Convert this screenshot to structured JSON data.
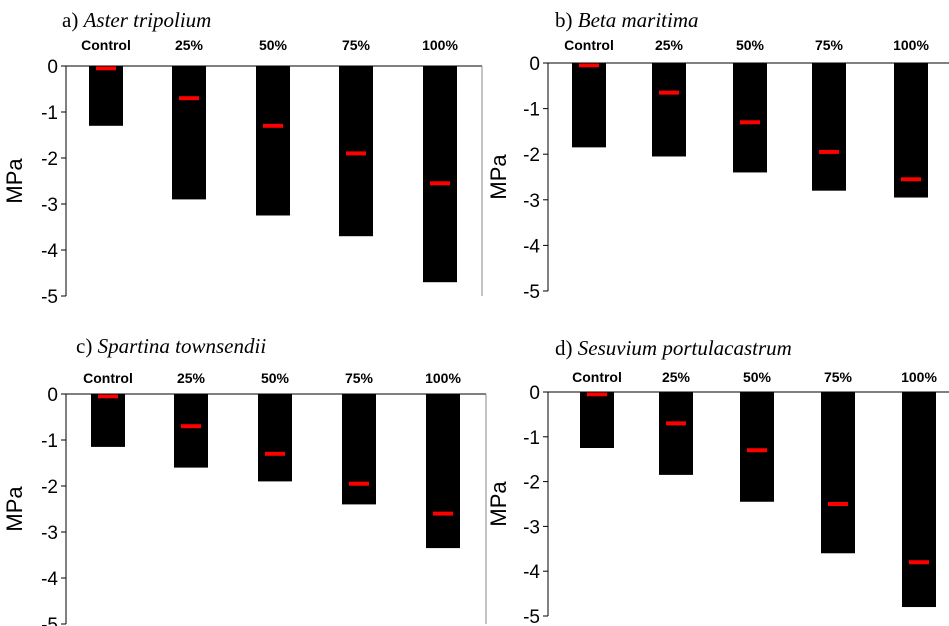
{
  "colors": {
    "bar": "#000000",
    "marker": "#ff0000",
    "axis": "#000000",
    "background": "#ffffff"
  },
  "chart_data": [
    {
      "type": "bar",
      "panel_label": "a)",
      "title": "Aster tripolium",
      "categories": [
        "Control",
        "25%",
        "50%",
        "75%",
        "100%"
      ],
      "ylabel": "MPa",
      "ylim": [
        -5,
        0
      ],
      "yticks": [
        "0",
        "-1",
        "-2",
        "-3",
        "-4",
        "-5"
      ],
      "grid": false,
      "series": [
        {
          "values": [
            -1.3,
            -2.9,
            -3.25,
            -3.7,
            -4.7
          ]
        },
        {
          "values": [
            -0.05,
            -0.7,
            -1.3,
            -1.9,
            -2.55
          ]
        }
      ]
    },
    {
      "type": "bar",
      "panel_label": "b)",
      "title": "Beta maritima",
      "categories": [
        "Control",
        "25%",
        "50%",
        "75%",
        "100%"
      ],
      "ylabel": "MPa",
      "ylim": [
        -5,
        0
      ],
      "yticks": [
        "0",
        "-1",
        "-2",
        "-3",
        "-4",
        "-5"
      ],
      "grid": false,
      "series": [
        {
          "values": [
            -1.85,
            -2.05,
            -2.4,
            -2.8,
            -2.95
          ]
        },
        {
          "values": [
            -0.05,
            -0.65,
            -1.3,
            -1.95,
            -2.55
          ]
        }
      ]
    },
    {
      "type": "bar",
      "panel_label": "c)",
      "title": "Spartina townsendii",
      "categories": [
        "Control",
        "25%",
        "50%",
        "75%",
        "100%"
      ],
      "ylabel": "MPa",
      "ylim": [
        -5,
        0
      ],
      "yticks": [
        "0",
        "-1",
        "-2",
        "-3",
        "-4",
        "-5"
      ],
      "grid": false,
      "series": [
        {
          "values": [
            -1.15,
            -1.6,
            -1.9,
            -2.4,
            -3.35
          ]
        },
        {
          "values": [
            -0.05,
            -0.7,
            -1.3,
            -1.95,
            -2.6
          ]
        }
      ]
    },
    {
      "type": "bar",
      "panel_label": "d)",
      "title": "Sesuvium portulacastrum",
      "categories": [
        "Control",
        "25%",
        "50%",
        "75%",
        "100%"
      ],
      "ylabel": "MPa",
      "ylim": [
        -5,
        0
      ],
      "yticks": [
        "0",
        "-1",
        "-2",
        "-3",
        "-4",
        "-5"
      ],
      "grid": false,
      "series": [
        {
          "values": [
            -1.25,
            -1.85,
            -2.45,
            -3.6,
            -4.8
          ]
        },
        {
          "values": [
            -0.05,
            -0.7,
            -1.3,
            -2.5,
            -3.8
          ]
        }
      ]
    }
  ]
}
